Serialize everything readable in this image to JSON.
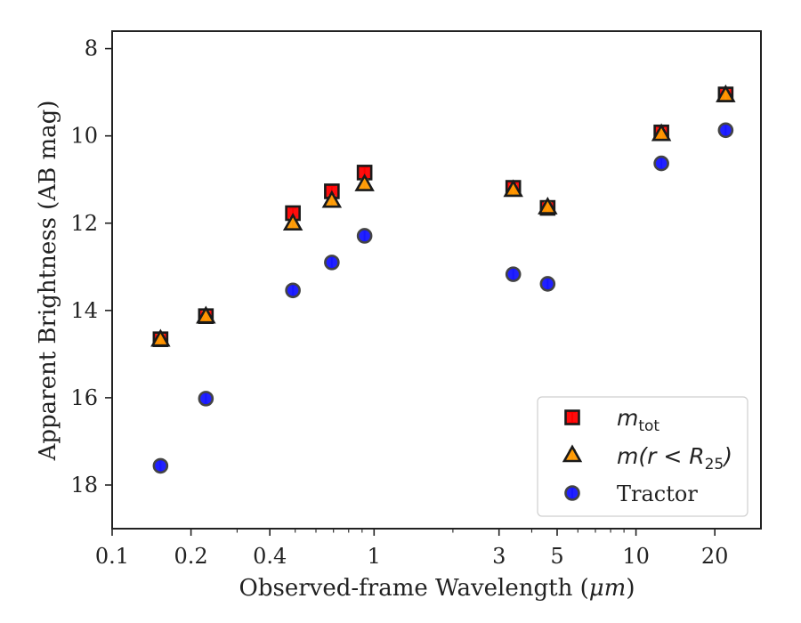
{
  "chart_data": {
    "type": "scatter",
    "xlabel_prefix": "Observed-frame Wavelength (",
    "xlabel_unit": "μm",
    "xlabel_suffix": ")",
    "ylabel": "Apparent Brightness (AB mag)",
    "xscale": "log",
    "xlim": [
      0.1,
      30
    ],
    "ylim": [
      19,
      7.6
    ],
    "y_inverted": true,
    "x_major_ticks": [
      {
        "value": 0.1,
        "label": "0.1"
      },
      {
        "value": 0.2,
        "label": "0.2"
      },
      {
        "value": 0.4,
        "label": "0.4"
      },
      {
        "value": 1,
        "label": "1"
      },
      {
        "value": 3,
        "label": "3"
      },
      {
        "value": 5,
        "label": "5"
      },
      {
        "value": 10,
        "label": "10"
      },
      {
        "value": 20,
        "label": "20"
      }
    ],
    "y_major_ticks": [
      {
        "value": 8,
        "label": "8"
      },
      {
        "value": 10,
        "label": "10"
      },
      {
        "value": 12,
        "label": "12"
      },
      {
        "value": 14,
        "label": "14"
      },
      {
        "value": 16,
        "label": "16"
      },
      {
        "value": 18,
        "label": "18"
      }
    ],
    "grid": false,
    "legend_position": "lower-right",
    "series": [
      {
        "name": "m_tot",
        "legend_math_main": "m",
        "legend_math_sub": "tot",
        "legend_math_tail": "",
        "marker": "square",
        "color": "#ff0000",
        "errorbar_color": "#dd1111",
        "x": [
          0.153,
          0.228,
          0.49,
          0.69,
          0.92,
          3.4,
          4.6,
          12.5,
          22.0
        ],
        "y": [
          14.66,
          14.13,
          11.77,
          11.27,
          10.84,
          11.19,
          11.65,
          9.92,
          9.05
        ]
      },
      {
        "name": "m(r < R_25)",
        "legend_math_main": "m(r < R",
        "legend_math_sub": "25",
        "legend_math_tail": ")",
        "marker": "triangle",
        "color": "#ff9900",
        "errorbar_color": "#f0b020",
        "x": [
          0.153,
          0.228,
          0.49,
          0.69,
          0.92,
          3.4,
          4.6,
          12.5,
          22.0
        ],
        "y": [
          14.68,
          14.15,
          12.02,
          11.5,
          11.12,
          11.25,
          11.65,
          9.97,
          9.08
        ]
      },
      {
        "name": "Tractor",
        "legend_math_main": "",
        "legend_math_sub": "",
        "legend_math_tail": "",
        "marker": "circle",
        "color": "#1515ff",
        "errorbar_color": "#2a2aee",
        "x": [
          0.153,
          0.228,
          0.49,
          0.69,
          0.92,
          3.4,
          4.6,
          12.5,
          22.0
        ],
        "y": [
          17.56,
          16.02,
          13.54,
          12.9,
          12.29,
          13.17,
          13.39,
          10.63,
          9.87
        ]
      }
    ]
  }
}
